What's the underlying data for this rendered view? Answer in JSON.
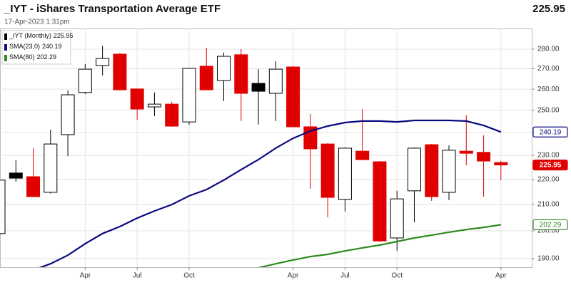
{
  "chart_data": {
    "type": "candlestick",
    "title": "_IYT - iShares Transportation Average ETF",
    "subtitle": "17-Apr-2023 1:31pm",
    "categories": [
      null,
      null,
      null,
      null,
      null,
      "Apr",
      null,
      null,
      "Jul",
      null,
      null,
      "Oct",
      null,
      null,
      null,
      null,
      null,
      "Apr",
      null,
      null,
      "Jul",
      null,
      null,
      "Oct",
      null,
      null,
      null,
      null,
      null,
      "Apr"
    ],
    "series": [
      {
        "name": "_IYT (Monthly)",
        "open": [
          199.0,
          222.6,
          221.1,
          214.8,
          239.0,
          258.4,
          271.6,
          277.4,
          260.1,
          251.6,
          252.9,
          244.7,
          271.3,
          264.2,
          277.1,
          262.8,
          258.0,
          270.9,
          242.5,
          234.9,
          212.0,
          231.8,
          227.3,
          197.4,
          215.4,
          234.6,
          214.8,
          231.8,
          231.3,
          227.0
        ],
        "high": [
          220.5,
          227.9,
          233.1,
          241.2,
          259.4,
          272.4,
          281.8,
          278.0,
          260.3,
          258.4,
          254.0,
          270.5,
          280.7,
          278.2,
          280.0,
          269.8,
          273.8,
          271.2,
          248.3,
          235.2,
          233.4,
          250.6,
          227.6,
          215.4,
          233.4,
          234.9,
          234.3,
          247.7,
          238.7,
          227.6
        ],
        "low": [
          197.0,
          219.1,
          212.8,
          214.3,
          229.7,
          257.6,
          266.7,
          259.4,
          245.7,
          247.4,
          242.5,
          243.5,
          259.4,
          254.3,
          245.1,
          243.5,
          245.1,
          242.2,
          216.2,
          205.1,
          207.3,
          227.9,
          196.0,
          192.8,
          203.2,
          211.4,
          211.7,
          225.8,
          213.1,
          219.7
        ],
        "close": [
          219.7,
          220.5,
          213.1,
          234.9,
          257.3,
          269.8,
          275.2,
          259.7,
          250.6,
          252.9,
          242.8,
          270.2,
          259.7,
          276.3,
          258.0,
          259.0,
          269.8,
          242.5,
          232.8,
          212.8,
          233.1,
          228.2,
          196.3,
          212.2,
          233.1,
          213.1,
          232.2,
          230.9,
          227.6,
          225.95
        ],
        "up_color": "#000000",
        "down_color": "#e00000"
      }
    ],
    "lines": [
      {
        "name": "SMA(23,0)",
        "color": "#0a0a80",
        "values": [
          null,
          null,
          186.0,
          188.2,
          191.2,
          195.3,
          199.0,
          201.6,
          204.8,
          207.5,
          210.0,
          213.4,
          215.9,
          219.7,
          224.0,
          228.2,
          233.1,
          237.4,
          240.6,
          242.8,
          244.4,
          245.1,
          245.1,
          244.7,
          245.4,
          245.4,
          245.4,
          245.1,
          243.1,
          240.19
        ]
      },
      {
        "name": "SMA(80)",
        "color": "#2e8b1e",
        "values": [
          null,
          null,
          null,
          null,
          null,
          null,
          null,
          null,
          null,
          null,
          null,
          null,
          null,
          null,
          null,
          186.8,
          188.2,
          189.5,
          190.7,
          191.5,
          192.7,
          193.8,
          194.8,
          196.1,
          197.4,
          198.4,
          199.5,
          200.5,
          201.3,
          202.29
        ]
      }
    ],
    "ylim": [
      187.0,
      290.9
    ],
    "yticks": [
      {
        "value": 190,
        "label": "190.00"
      },
      {
        "value": 200,
        "label": "200.00"
      },
      {
        "value": 210,
        "label": "210.00"
      },
      {
        "value": 220,
        "label": "220.00"
      },
      {
        "value": 230,
        "label": "230.00"
      },
      {
        "value": 240,
        "label": "240.00"
      },
      {
        "value": 250,
        "label": "250.00"
      },
      {
        "value": 260,
        "label": "260.00"
      },
      {
        "value": 270,
        "label": "270.00"
      },
      {
        "value": 280,
        "label": "280.00"
      }
    ],
    "log_scale": true,
    "grid": true,
    "legend": "top-left"
  }
}
